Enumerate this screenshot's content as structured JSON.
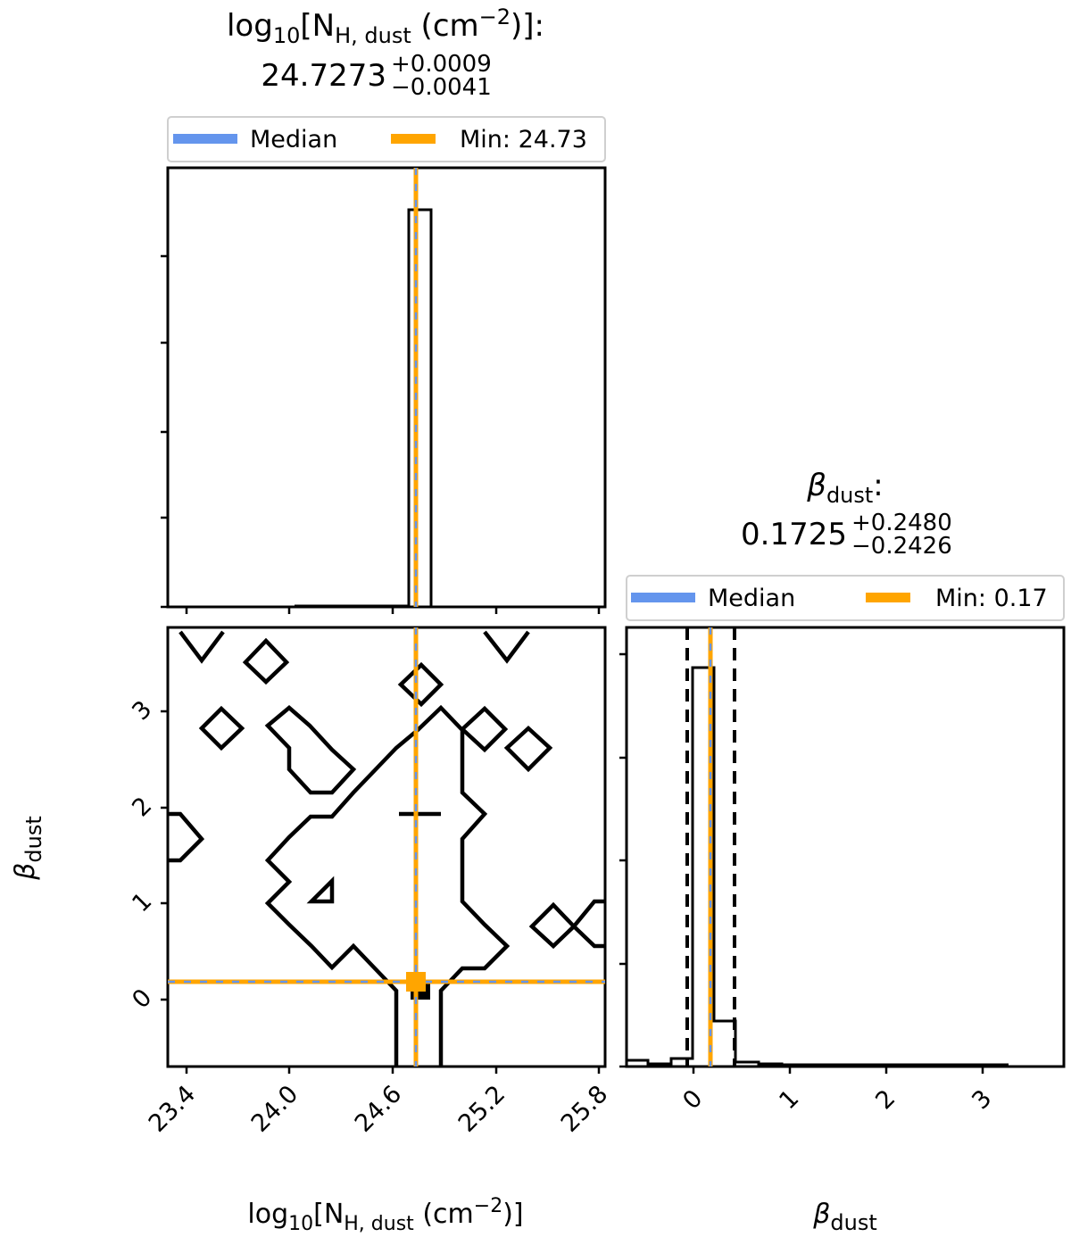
{
  "chart_data": [
    {
      "type": "histogram",
      "panel": "marginal-nh",
      "title": {
        "prefix": "log",
        "sub1": "10",
        "bracket": "[N",
        "sub2": "H, dust",
        "unit": " (cm",
        "sup": "−2",
        "close": ")]:",
        "value": "24.7273",
        "err_plus": "+0.0009",
        "err_minus": "−0.0041"
      },
      "legend": {
        "items": [
          "Median",
          "Min: 24.73"
        ],
        "colors": [
          "#6495ed",
          "#ffa500"
        ],
        "placement": "above"
      },
      "xlim": [
        23.3,
        25.8
      ],
      "bins": [
        {
          "x0": 24.67,
          "x1": 24.7,
          "h": 0.0
        },
        {
          "x0": 24.7,
          "x1": 24.73,
          "h": 0.0
        }
      ],
      "median": 24.7273,
      "min": 24.73,
      "y_tick_count": 5
    },
    {
      "type": "contour",
      "panel": "joint",
      "xlabel": {
        "prefix": "log",
        "sub1": "10",
        "bracket": "[N",
        "sub2": "H, dust",
        "unit": " (cm",
        "sup": "−2",
        "close": ")]"
      },
      "ylabel": {
        "symbol": "β",
        "sub": "dust"
      },
      "xlim": [
        23.3,
        25.8
      ],
      "ylim": [
        -0.7,
        3.85
      ],
      "xticks": [
        "23.4",
        "24.0",
        "24.6",
        "25.2",
        "25.8"
      ],
      "xtick_values": [
        23.4,
        24.0,
        24.6,
        25.2,
        25.8
      ],
      "yticks": [
        "0",
        "1",
        "2",
        "3"
      ],
      "ytick_values": [
        0,
        1,
        2,
        3
      ],
      "median_point": [
        24.7273,
        0.1725
      ],
      "min_point": [
        24.73,
        0.17
      ]
    },
    {
      "type": "histogram",
      "panel": "marginal-beta",
      "title": {
        "symbol": "β",
        "sub": "dust",
        "colon": ":",
        "value": "0.1725",
        "err_plus": "+0.2480",
        "err_minus": "−0.2426"
      },
      "legend": {
        "items": [
          "Median",
          "Min: 0.17"
        ],
        "colors": [
          "#6495ed",
          "#ffa500"
        ],
        "placement": "above"
      },
      "xlabel": {
        "symbol": "β",
        "sub": "dust"
      },
      "xlim": [
        -0.7,
        3.85
      ],
      "xticks": [
        "0",
        "1",
        "2",
        "3"
      ],
      "xtick_values": [
        0,
        1,
        2,
        3
      ],
      "median": 0.1725,
      "min": 0.17,
      "quantiles": [
        -0.0701,
        0.4205
      ],
      "y_tick_count": 5
    }
  ]
}
